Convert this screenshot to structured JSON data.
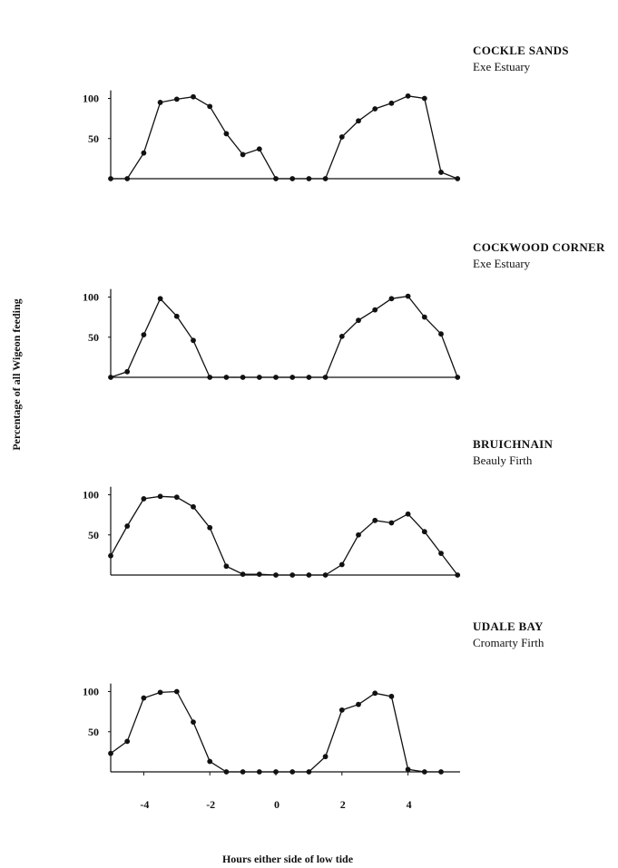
{
  "chart_data": [
    {
      "type": "line",
      "title": "COCKLE SANDS",
      "subtitle": "Exe Estuary",
      "x": [
        -5,
        -4.5,
        -4,
        -3.5,
        -3,
        -2.5,
        -2,
        -1.5,
        -1,
        -0.5,
        0,
        0.5,
        1,
        1.5,
        2,
        2.5,
        3,
        3.5,
        4,
        4.5,
        5,
        5.5
      ],
      "values": [
        0,
        0,
        32,
        95,
        99,
        102,
        90,
        56,
        30,
        37,
        0,
        0,
        0,
        0,
        52,
        72,
        87,
        94,
        103,
        100,
        8,
        0
      ],
      "ylim": [
        0,
        100
      ],
      "yticks": [
        "50",
        "100"
      ]
    },
    {
      "type": "line",
      "title": "COCKWOOD CORNER",
      "subtitle": "Exe Estuary",
      "x": [
        -5,
        -4.5,
        -4,
        -3.5,
        -3,
        -2.5,
        -2,
        -1.5,
        -1,
        -0.5,
        0,
        0.5,
        1,
        1.5,
        2,
        2.5,
        3,
        3.5,
        4,
        4.5,
        5,
        5.5
      ],
      "values": [
        0,
        7,
        53,
        98,
        76,
        46,
        0,
        0,
        0,
        0,
        0,
        0,
        0,
        0,
        51,
        71,
        84,
        98,
        101,
        75,
        54,
        0
      ],
      "ylim": [
        0,
        100
      ],
      "yticks": [
        "50",
        "100"
      ]
    },
    {
      "type": "line",
      "title": "BRUICHNAIN",
      "subtitle": "Beauly Firth",
      "x": [
        -5,
        -4.5,
        -4,
        -3.5,
        -3,
        -2.5,
        -2,
        -1.5,
        -1,
        -0.5,
        0,
        0.5,
        1,
        1.5,
        2,
        2.5,
        3,
        3.5,
        4,
        4.5,
        5,
        5.5
      ],
      "values": [
        24,
        61,
        95,
        98,
        97,
        85,
        59,
        11,
        1,
        1,
        0,
        0,
        0,
        0,
        13,
        50,
        68,
        65,
        76,
        54,
        27,
        0
      ],
      "ylim": [
        0,
        100
      ],
      "yticks": [
        "50",
        "100"
      ]
    },
    {
      "type": "line",
      "title": "UDALE BAY",
      "subtitle": "Cromarty Firth",
      "x": [
        -5,
        -4.5,
        -4,
        -3.5,
        -3,
        -2.5,
        -2,
        -1.5,
        -1,
        -0.5,
        0,
        0.5,
        1,
        1.5,
        2,
        2.5,
        3,
        3.5,
        4,
        4.5,
        5
      ],
      "values": [
        23,
        38,
        92,
        99,
        100,
        62,
        13,
        0,
        0,
        0,
        0,
        0,
        0,
        19,
        77,
        84,
        98,
        94,
        3,
        0,
        0
      ],
      "ylim": [
        0,
        100
      ],
      "yticks": [
        "50",
        "100"
      ],
      "xticks": [
        "-4",
        "-2",
        "0",
        "2",
        "4"
      ]
    }
  ],
  "ylabel": "Percentage of all Wigeon feeding",
  "xlabel": "Hours either side of low tide"
}
